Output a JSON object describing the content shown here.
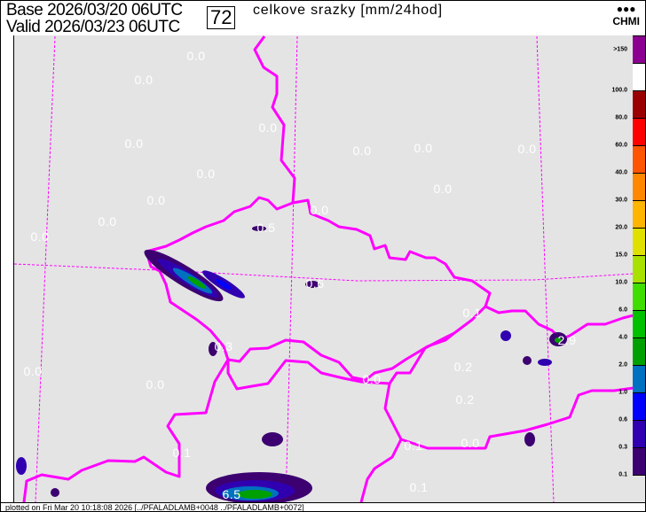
{
  "header": {
    "base": "Base 2026/03/20 06UTC",
    "valid": "Valid 2026/03/23 06UTC",
    "lead_hour": "72",
    "title": "celkove srazky [mm/24hod]",
    "logo_text": "CHMI"
  },
  "colors": {
    "background": "#e4e4e4",
    "borders": "#ff00ff",
    "labels": "#ffffff"
  },
  "legend": [
    {
      "label": ">150",
      "color": "#8b0090"
    },
    {
      "label": "100.0",
      "color": "#ffffff"
    },
    {
      "label": "80.0",
      "color": "#9b0000"
    },
    {
      "label": "60.0",
      "color": "#ff0000"
    },
    {
      "label": "40.0",
      "color": "#ff5500"
    },
    {
      "label": "30.0",
      "color": "#ff8800"
    },
    {
      "label": "20.0",
      "color": "#ffb400"
    },
    {
      "label": "15.0",
      "color": "#e0e000"
    },
    {
      "label": "10.0",
      "color": "#a8e000"
    },
    {
      "label": "6.0",
      "color": "#40dd00"
    },
    {
      "label": "4.0",
      "color": "#00c000"
    },
    {
      "label": "2.0",
      "color": "#00a000"
    },
    {
      "label": "1.0",
      "color": "#0070c0"
    },
    {
      "label": "0.6",
      "color": "#0000ff"
    },
    {
      "label": "0.3",
      "color": "#3000b0"
    },
    {
      "label": "0.1",
      "color": "#3c0070"
    },
    {
      "label": "",
      "color": "#e4e4e4"
    }
  ],
  "map_values": [
    "0.0",
    "0.0",
    "0.0",
    "0.0",
    "0.0",
    "0.0",
    "0.0",
    "0.0",
    "0.5",
    "0.0",
    "0.0",
    "0.0",
    "0.0",
    "0.0",
    "0.6",
    "0.3",
    "0.1",
    "2.9",
    "0.2",
    "0.0",
    "0.2",
    "0.1",
    "0.0",
    "0.1",
    "0.0",
    "0.0",
    "0.1",
    "6.5"
  ],
  "footer": "plotted on Fri Mar 20 10:18:08 2026 [../PFALADLAMB+0048 ../PFALADLAMB+0072]"
}
